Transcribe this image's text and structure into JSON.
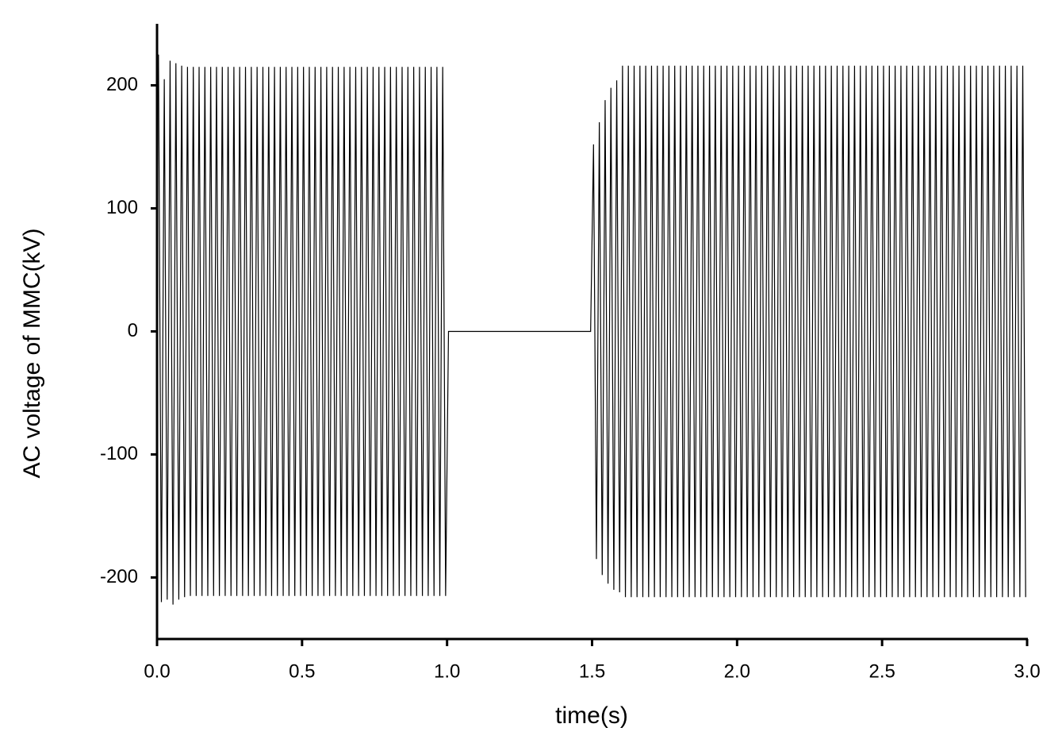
{
  "chart_data": {
    "type": "line",
    "xlabel": "time(s)",
    "ylabel": "AC voltage of MMC(kV)",
    "color": "#000000",
    "xlim": [
      0,
      3
    ],
    "ylim": [
      -250,
      250
    ],
    "xticks": [
      {
        "value": 0,
        "label": "0.0"
      },
      0.5,
      {
        "value": 1,
        "label": "1.0"
      },
      1.5,
      {
        "value": 2,
        "label": "2.0"
      },
      2.5,
      {
        "value": 3,
        "label": "3.0"
      }
    ],
    "yticks": [
      -200,
      -100,
      0,
      100,
      200
    ],
    "x": [
      0.005,
      0.015,
      0.025,
      0.035,
      0.045,
      0.055,
      0.065,
      0.075,
      0.085,
      0.095,
      0.105,
      0.115,
      0.125,
      0.135,
      0.145,
      0.155,
      0.165,
      0.175,
      0.185,
      0.195,
      0.205,
      0.215,
      0.225,
      0.235,
      0.245,
      0.255,
      0.265,
      0.275,
      0.285,
      0.295,
      0.305,
      0.315,
      0.325,
      0.335,
      0.345,
      0.355,
      0.365,
      0.375,
      0.385,
      0.395,
      0.405,
      0.415,
      0.425,
      0.435,
      0.445,
      0.455,
      0.465,
      0.475,
      0.485,
      0.495,
      0.505,
      0.515,
      0.525,
      0.535,
      0.545,
      0.555,
      0.565,
      0.575,
      0.585,
      0.595,
      0.605,
      0.615,
      0.625,
      0.635,
      0.645,
      0.655,
      0.665,
      0.675,
      0.685,
      0.695,
      0.705,
      0.715,
      0.725,
      0.735,
      0.745,
      0.755,
      0.765,
      0.775,
      0.785,
      0.795,
      0.805,
      0.815,
      0.825,
      0.835,
      0.845,
      0.855,
      0.865,
      0.875,
      0.885,
      0.895,
      0.905,
      0.915,
      0.925,
      0.935,
      0.945,
      0.955,
      0.965,
      0.975,
      0.985,
      0.995,
      1.005,
      1.015,
      1.025,
      1.035,
      1.045,
      1.055,
      1.065,
      1.075,
      1.085,
      1.095,
      1.105,
      1.115,
      1.125,
      1.135,
      1.145,
      1.155,
      1.165,
      1.175,
      1.185,
      1.195,
      1.205,
      1.215,
      1.225,
      1.235,
      1.245,
      1.255,
      1.265,
      1.275,
      1.285,
      1.295,
      1.305,
      1.315,
      1.325,
      1.335,
      1.345,
      1.355,
      1.365,
      1.375,
      1.385,
      1.395,
      1.405,
      1.415,
      1.425,
      1.435,
      1.445,
      1.455,
      1.465,
      1.475,
      1.485,
      1.495,
      1.505,
      1.515,
      1.525,
      1.535,
      1.545,
      1.555,
      1.565,
      1.575,
      1.585,
      1.595,
      1.605,
      1.615,
      1.625,
      1.635,
      1.645,
      1.655,
      1.665,
      1.675,
      1.685,
      1.695,
      1.705,
      1.715,
      1.725,
      1.735,
      1.745,
      1.755,
      1.765,
      1.775,
      1.785,
      1.795,
      1.805,
      1.815,
      1.825,
      1.835,
      1.845,
      1.855,
      1.865,
      1.875,
      1.885,
      1.895,
      1.905,
      1.915,
      1.925,
      1.935,
      1.945,
      1.955,
      1.965,
      1.975,
      1.985,
      1.995,
      2.005,
      2.015,
      2.025,
      2.035,
      2.045,
      2.055,
      2.065,
      2.075,
      2.085,
      2.095,
      2.105,
      2.115,
      2.125,
      2.135,
      2.145,
      2.155,
      2.165,
      2.175,
      2.185,
      2.195,
      2.205,
      2.215,
      2.225,
      2.235,
      2.245,
      2.255,
      2.265,
      2.275,
      2.285,
      2.295,
      2.305,
      2.315,
      2.325,
      2.335,
      2.345,
      2.355,
      2.365,
      2.375,
      2.385,
      2.395,
      2.405,
      2.415,
      2.425,
      2.435,
      2.445,
      2.455,
      2.465,
      2.475,
      2.485,
      2.495,
      2.505,
      2.515,
      2.525,
      2.535,
      2.545,
      2.555,
      2.565,
      2.575,
      2.585,
      2.595,
      2.605,
      2.615,
      2.625,
      2.635,
      2.645,
      2.655,
      2.665,
      2.675,
      2.685,
      2.695,
      2.705,
      2.715,
      2.725,
      2.735,
      2.745,
      2.755,
      2.765,
      2.775,
      2.785,
      2.795,
      2.805,
      2.815,
      2.825,
      2.835,
      2.845,
      2.855,
      2.865,
      2.875,
      2.885,
      2.895,
      2.905,
      2.915,
      2.925,
      2.935,
      2.945,
      2.955,
      2.965,
      2.975,
      2.985,
      2.995
    ],
    "values": [
      225,
      -220,
      205,
      -218,
      220,
      -222,
      218,
      -218,
      216,
      -216,
      215,
      -215,
      215,
      -215,
      215,
      -215,
      215,
      -215,
      215,
      -215,
      215,
      -215,
      215,
      -215,
      215,
      -215,
      215,
      -215,
      215,
      -215,
      215,
      -215,
      215,
      -215,
      215,
      -215,
      215,
      -215,
      215,
      -215,
      215,
      -215,
      215,
      -215,
      215,
      -215,
      215,
      -215,
      215,
      -215,
      215,
      -215,
      215,
      -215,
      215,
      -215,
      215,
      -215,
      215,
      -215,
      215,
      -215,
      215,
      -215,
      215,
      -215,
      215,
      -215,
      215,
      -215,
      215,
      -215,
      215,
      -215,
      215,
      -215,
      215,
      -215,
      215,
      -215,
      215,
      -215,
      215,
      -215,
      215,
      -215,
      215,
      -215,
      215,
      -215,
      215,
      -215,
      215,
      -215,
      215,
      -215,
      215,
      -215,
      215,
      -215,
      0,
      0,
      0,
      0,
      0,
      0,
      0,
      0,
      0,
      0,
      0,
      0,
      0,
      0,
      0,
      0,
      0,
      0,
      0,
      0,
      0,
      0,
      0,
      0,
      0,
      0,
      0,
      0,
      0,
      0,
      0,
      0,
      0,
      0,
      0,
      0,
      0,
      0,
      0,
      0,
      0,
      0,
      0,
      0,
      0,
      0,
      0,
      0,
      0,
      0,
      152,
      -185,
      170,
      -198,
      188,
      -205,
      198,
      -210,
      204,
      -212,
      216,
      -216,
      216,
      -216,
      216,
      -216,
      216,
      -216,
      216,
      -216,
      216,
      -216,
      216,
      -216,
      216,
      -216,
      216,
      -216,
      216,
      -216,
      216,
      -216,
      216,
      -216,
      216,
      -216,
      216,
      -216,
      216,
      -216,
      216,
      -216,
      216,
      -216,
      216,
      -216,
      216,
      -216,
      216,
      -216,
      216,
      -216,
      216,
      -216,
      216,
      -216,
      216,
      -216,
      216,
      -216,
      216,
      -216,
      216,
      -216,
      216,
      -216,
      216,
      -216,
      216,
      -216,
      216,
      -216,
      216,
      -216,
      216,
      -216,
      216,
      -216,
      216,
      -216,
      216,
      -216,
      216,
      -216,
      216,
      -216,
      216,
      -216,
      216,
      -216,
      216,
      -216,
      216,
      -216,
      216,
      -216,
      216,
      -216,
      216,
      -216,
      216,
      -216,
      216,
      -216,
      216,
      -216,
      216,
      -216,
      216,
      -216,
      216,
      -216,
      216,
      -216,
      216,
      -216,
      216,
      -216,
      216,
      -216,
      216,
      -216,
      216,
      -216,
      216,
      -216,
      216,
      -216,
      216,
      -216,
      216,
      -216,
      216,
      -216,
      216,
      -216,
      216,
      -216,
      216,
      -216,
      216,
      -216,
      216,
      -216,
      216,
      -216,
      216,
      -216,
      216,
      -216
    ]
  }
}
